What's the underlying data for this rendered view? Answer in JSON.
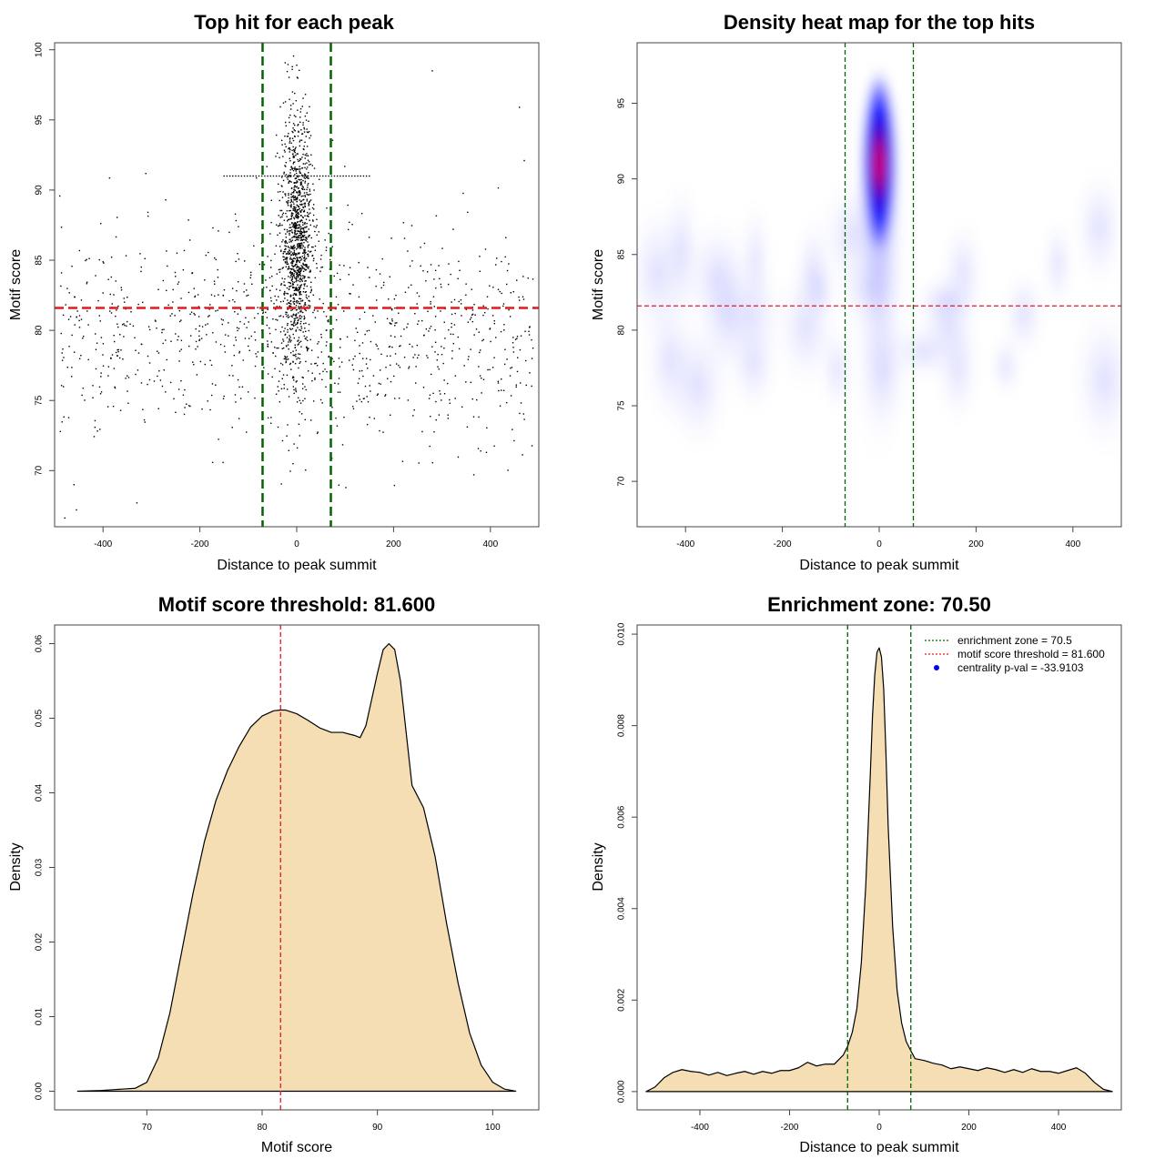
{
  "chart_data": [
    {
      "type": "scatter",
      "title": "Top hit for each peak",
      "xlabel": "Distance to peak summit",
      "ylabel": "Motif score",
      "xlim": [
        -500,
        500
      ],
      "ylim": [
        66,
        100.5
      ],
      "xticks": [
        -400,
        -200,
        0,
        200,
        400
      ],
      "yticks": [
        70,
        75,
        80,
        85,
        90,
        95,
        100
      ],
      "vlines": [
        -70.5,
        70.5
      ],
      "hline": 81.6,
      "vline_color": "#006400",
      "hline_color": "#e41a1c",
      "points_description": "approx. 2500 top hits; dense column near distance 0 with scores 75-98, uniform background over -500..500 with scores 67-92",
      "outliers": [
        {
          "x": -455,
          "y": 67.2
        },
        {
          "x": -460,
          "y": 69.0
        },
        {
          "x": -330,
          "y": 67.7
        },
        {
          "x": 280,
          "y": 98.5
        },
        {
          "x": 460,
          "y": 95.9
        },
        {
          "x": 470,
          "y": 92.1
        },
        {
          "x": 380,
          "y": 71.4
        },
        {
          "x": 0,
          "y": 98.9
        }
      ]
    },
    {
      "type": "heatmap",
      "title": "Density heat map for the top hits",
      "xlabel": "Distance to peak summit",
      "ylabel": "Motif score",
      "xlim": [
        -500,
        500
      ],
      "ylim": [
        67,
        99
      ],
      "xticks": [
        -400,
        -200,
        0,
        200,
        400
      ],
      "yticks": [
        70,
        75,
        80,
        85,
        90,
        95
      ],
      "vlines": [
        -70.5,
        70.5
      ],
      "hline": 81.6,
      "color_scale": [
        "#ffffff",
        "#0000ff",
        "#ff0000"
      ],
      "peak": {
        "x": 0,
        "y": 91
      }
    },
    {
      "type": "area",
      "title": "Motif score threshold: 81.600",
      "xlabel": "Motif score",
      "ylabel": "Density",
      "xlim": [
        62,
        104
      ],
      "ylim": [
        -0.0025,
        0.0625
      ],
      "xticks": [
        70,
        80,
        90,
        100
      ],
      "yticks": [
        0.0,
        0.01,
        0.02,
        0.03,
        0.04,
        0.05,
        0.06
      ],
      "ytick_labels": [
        "0.00",
        "0.01",
        "0.02",
        "0.03",
        "0.04",
        "0.05",
        "0.06"
      ],
      "vline": 81.6,
      "fill": "#f5deb3",
      "x": [
        64,
        66,
        68,
        69,
        70,
        71,
        72,
        73,
        74,
        75,
        76,
        77,
        78,
        79,
        80,
        81,
        81.6,
        82,
        83,
        84,
        85,
        86,
        87,
        88,
        88.5,
        89,
        90,
        90.5,
        91,
        91.5,
        92,
        93,
        94,
        95,
        96,
        97,
        98,
        99,
        100,
        101,
        102
      ],
      "y": [
        0.0,
        0.0001,
        0.0003,
        0.0004,
        0.0012,
        0.0045,
        0.0105,
        0.0185,
        0.0265,
        0.0335,
        0.039,
        0.043,
        0.0462,
        0.0488,
        0.0503,
        0.051,
        0.0511,
        0.0511,
        0.0506,
        0.0497,
        0.0487,
        0.0481,
        0.0481,
        0.0477,
        0.0474,
        0.049,
        0.056,
        0.0592,
        0.06,
        0.0592,
        0.055,
        0.041,
        0.038,
        0.0315,
        0.0225,
        0.0145,
        0.0078,
        0.0035,
        0.0012,
        0.0003,
        0.0
      ]
    },
    {
      "type": "area",
      "title": "Enrichment zone: 70.50",
      "xlabel": "Distance to peak summit",
      "ylabel": "Density",
      "xlim": [
        -540,
        540
      ],
      "ylim": [
        -0.0004,
        0.0102
      ],
      "xticks": [
        -400,
        -200,
        0,
        200,
        400
      ],
      "yticks": [
        0.0,
        0.002,
        0.004,
        0.006,
        0.008,
        0.01
      ],
      "ytick_labels": [
        "0.000",
        "0.002",
        "0.004",
        "0.006",
        "0.008",
        "0.010"
      ],
      "vlines": [
        -70.5,
        70.5
      ],
      "fill": "#f5deb3",
      "x": [
        -520,
        -500,
        -480,
        -460,
        -440,
        -420,
        -400,
        -380,
        -360,
        -340,
        -320,
        -300,
        -280,
        -260,
        -240,
        -220,
        -200,
        -180,
        -160,
        -140,
        -120,
        -100,
        -80,
        -70,
        -60,
        -50,
        -40,
        -30,
        -20,
        -15,
        -10,
        -5,
        0,
        5,
        10,
        15,
        20,
        30,
        40,
        50,
        60,
        70,
        80,
        100,
        120,
        140,
        160,
        180,
        200,
        220,
        240,
        260,
        280,
        300,
        320,
        340,
        360,
        380,
        400,
        420,
        440,
        460,
        480,
        500,
        520
      ],
      "y": [
        0.0,
        0.0001,
        0.0003,
        0.00042,
        0.00048,
        0.00044,
        0.00042,
        0.00036,
        0.00042,
        0.00035,
        0.0004,
        0.00044,
        0.00038,
        0.00044,
        0.0004,
        0.00046,
        0.00046,
        0.00052,
        0.00064,
        0.00056,
        0.0006,
        0.0006,
        0.0008,
        0.001,
        0.0013,
        0.0018,
        0.0028,
        0.0045,
        0.0069,
        0.0082,
        0.0091,
        0.0096,
        0.0097,
        0.0095,
        0.0088,
        0.0074,
        0.0058,
        0.0036,
        0.0022,
        0.0015,
        0.0011,
        0.0009,
        0.00072,
        0.00068,
        0.00062,
        0.00058,
        0.0005,
        0.00054,
        0.0005,
        0.00046,
        0.00052,
        0.00048,
        0.00042,
        0.00048,
        0.00042,
        0.0005,
        0.00044,
        0.00044,
        0.0004,
        0.00046,
        0.00052,
        0.0004,
        0.0002,
        5e-05,
        0.0
      ],
      "legend": [
        {
          "label": "enrichment zone = 70.5",
          "style": "dotted",
          "color": "#006400"
        },
        {
          "label": "motif score threshold = 81.600",
          "style": "dotted",
          "color": "#e41a1c"
        },
        {
          "label": "centrality p-val = -33.9103",
          "style": "point",
          "color": "#0000ff"
        }
      ]
    }
  ]
}
